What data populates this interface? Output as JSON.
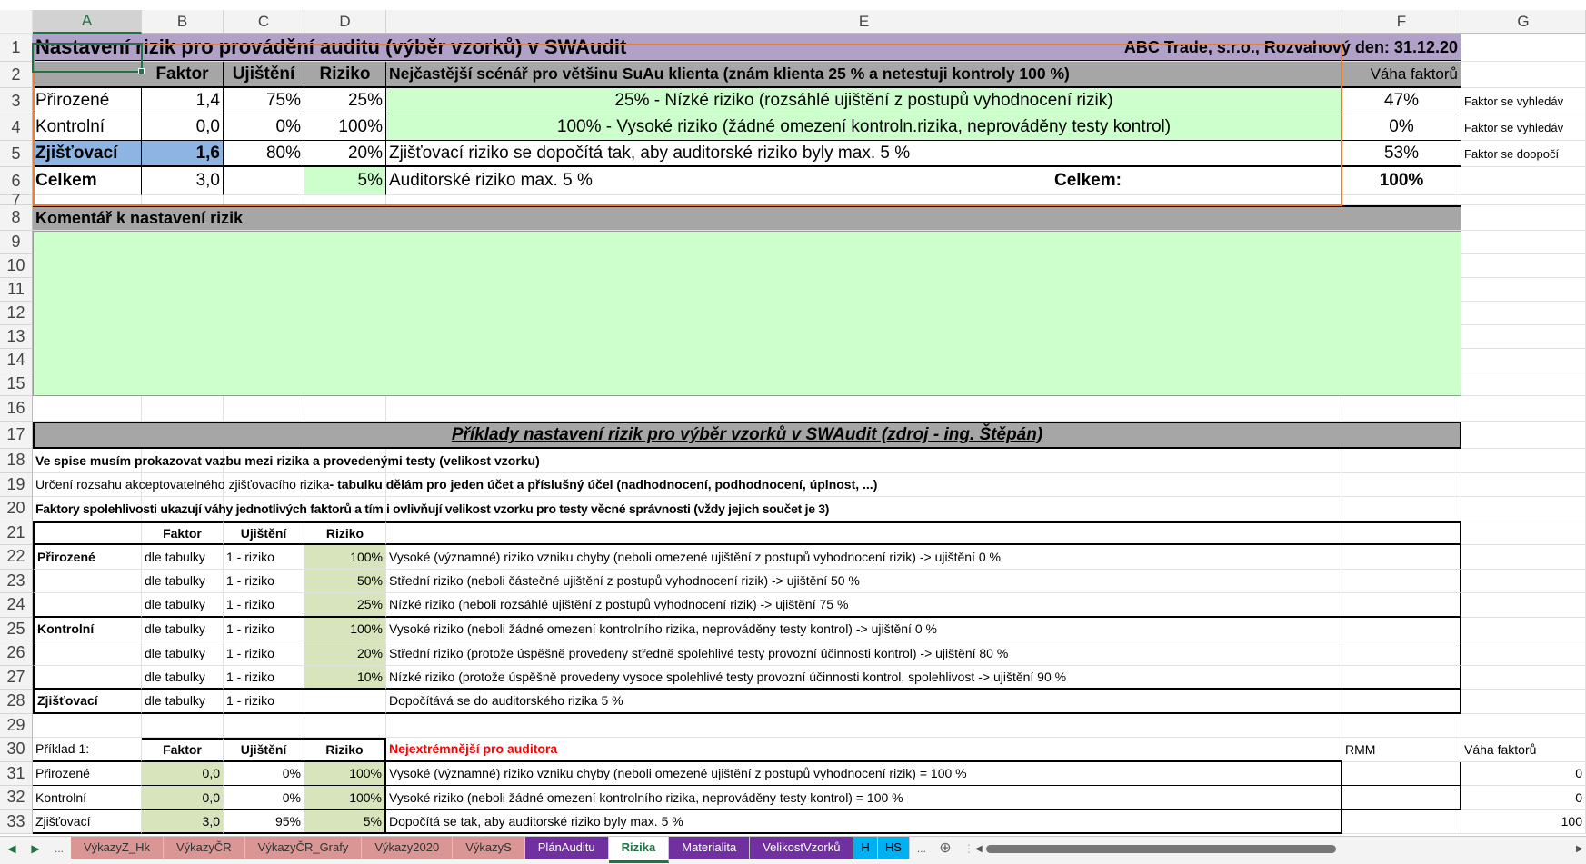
{
  "app": {
    "accent_color": "#217346",
    "selected_cell": "A1"
  },
  "columns": [
    "A",
    "B",
    "C",
    "D",
    "E",
    "F",
    "G"
  ],
  "row_numbers": [
    "1",
    "2",
    "3",
    "4",
    "5",
    "6",
    "7",
    "8",
    "9",
    "10",
    "11",
    "12",
    "13",
    "14",
    "15",
    "16",
    "17",
    "18",
    "19",
    "20",
    "21",
    "22",
    "23",
    "24",
    "25",
    "26",
    "27",
    "28",
    "29",
    "30",
    "31",
    "32",
    "33"
  ],
  "header": {
    "title": "Nastavení rizik pro provádění auditu (výběr vzorků) v SWAudit",
    "company": "ABC Trade, s.r.o., Rozvahový den: 31.12.20"
  },
  "risk_table": {
    "headers": {
      "faktor": "Faktor",
      "ujisteni": "Ujištění",
      "riziko": "Riziko",
      "scenario": "Nejčastější scénář pro většinu SuAu klienta (znám klienta 25 % a netestuji kontroly 100 %)",
      "vaha": "Váha faktorů"
    },
    "rows": [
      {
        "name": "Přirozené",
        "faktor": "1,4",
        "ujisteni": "75%",
        "riziko": "25%",
        "popis": "25% - Nízké riziko (rozsáhlé ujištění z postupů vyhodnocení rizik)",
        "vaha": "47%",
        "note": "Faktor se vyhledáv"
      },
      {
        "name": "Kontrolní",
        "faktor": "0,0",
        "ujisteni": "0%",
        "riziko": "100%",
        "popis": "100% - Vysoké riziko (žádné omezení kontroln.rizika, neprováděny testy kontrol)",
        "vaha": "0%",
        "note": "Faktor se vyhledáv"
      },
      {
        "name": "Zjišťovací",
        "faktor": "1,6",
        "ujisteni": "80%",
        "riziko": "20%",
        "popis": "Zjišťovací riziko se dopočítá tak, aby auditorské riziko byly max. 5 %",
        "vaha": "53%",
        "note": "Faktor se doopočí"
      }
    ],
    "total": {
      "name": "Celkem",
      "faktor": "3,0",
      "riziko": "5%",
      "popis": "Auditorské riziko max. 5 %",
      "label": "Celkem:",
      "vaha": "100%"
    }
  },
  "comment": {
    "header": "Komentář k nastavení rizik"
  },
  "examples": {
    "title": "Příklady nastavení rizik pro výběr vzorků v SWAudit (zdroj - ing. Štěpán)",
    "note1": "Ve spise musím prokazovat vazbu mezi rizika a provedenými testy (velikost vzorku)",
    "note2_normal": "Určení rozsahu akceptovatelného zjišťovacího rizika ",
    "note2_bold": "- tabulku dělám pro jeden účet a příslušný účel (nadhodnocení, podhodnocení, úplnost, ...)",
    "note3": "Faktory spolehlivosti ukazují váhy jednotlivých faktorů a tím i ovlivňují velikost vzorku pro testy věcné správnosti (vždy jejich součet je 3)",
    "headers": {
      "faktor": "Faktor",
      "ujisteni": "Ujištění",
      "riziko": "Riziko"
    },
    "rows": [
      {
        "name": "Přirozené",
        "faktor": "dle tabulky",
        "ujisteni": "1 - riziko",
        "riziko": "100%",
        "popis": "Vysoké (významné) riziko vzniku chyby (neboli omezené ujištění z postupů vyhodnocení rizik) -> ujištění 0 %"
      },
      {
        "name": "",
        "faktor": "dle tabulky",
        "ujisteni": "1 - riziko",
        "riziko": "50%",
        "popis": "Střední riziko (neboli částečné ujištění z postupů vyhodnocení rizik) -> ujištění 50 %"
      },
      {
        "name": "",
        "faktor": "dle tabulky",
        "ujisteni": "1 - riziko",
        "riziko": "25%",
        "popis": "Nízké riziko (neboli rozsáhlé ujištění z postupů vyhodnocení rizik)  -> ujištění 75 %"
      },
      {
        "name": "Kontrolní",
        "faktor": "dle tabulky",
        "ujisteni": "1 - riziko",
        "riziko": "100%",
        "popis": "Vysoké riziko (neboli žádné omezení kontrolního rizika, neprováděny testy kontrol)  -> ujištění 0 %"
      },
      {
        "name": "",
        "faktor": "dle tabulky",
        "ujisteni": "1 - riziko",
        "riziko": "20%",
        "popis": "Střední riziko (protože úspěšně provedeny středně spolehlivé testy provozní účinnosti kontrol)  -> ujištění 80 %"
      },
      {
        "name": "",
        "faktor": "dle tabulky",
        "ujisteni": "1 - riziko",
        "riziko": "10%",
        "popis": "Nízké riziko (protože úspěšně provedeny vysoce spolehlivé testy provozní účinnosti kontrol, spolehlivost  -> ujištění 90 %"
      },
      {
        "name": "Zjišťovací",
        "faktor": "dle tabulky",
        "ujisteni": "1 - riziko",
        "riziko": "",
        "popis": "Dopočítává se do auditorského rizika 5 %"
      }
    ]
  },
  "example1": {
    "label": "Příklad 1:",
    "headers": {
      "faktor": "Faktor",
      "ujisteni": "Ujištění",
      "riziko": "Riziko",
      "title": "Nejextrémnější pro auditora",
      "rmm": "RMM",
      "vaha": "Váha faktorů"
    },
    "rows": [
      {
        "name": "Přirozené",
        "faktor": "0,0",
        "ujisteni": "0%",
        "riziko": "100%",
        "popis": "Vysoké (významné) riziko vzniku chyby (neboli omezené ujištění z postupů vyhodnocení rizik) = 100 %",
        "vaha": "0"
      },
      {
        "name": "Kontrolní",
        "faktor": "0,0",
        "ujisteni": "0%",
        "riziko": "100%",
        "popis": "Vysoké riziko (neboli žádné omezení kontrolního rizika, neprováděny testy kontrol) = 100 %",
        "vaha": "0"
      },
      {
        "name": "Zjišťovací",
        "faktor": "3,0",
        "ujisteni": "95%",
        "riziko": "5%",
        "popis": "Dopočítá se tak, aby auditorské riziko byly max. 5 %",
        "vaha": "100"
      }
    ]
  },
  "sheet_tabs": {
    "more": "...",
    "tabs": [
      {
        "label": "VýkazyZ_Hk",
        "color": "#da9694"
      },
      {
        "label": "VýkazyČR",
        "color": "#da9694"
      },
      {
        "label": "VýkazyČR_Grafy",
        "color": "#da9694"
      },
      {
        "label": "Výkazy2020",
        "color": "#da9694"
      },
      {
        "label": "VýkazyS",
        "color": "#da9694"
      },
      {
        "label": "PlánAuditu",
        "color": "#7030a0"
      },
      {
        "label": "Rizika",
        "color": "#ffffff",
        "active": true
      },
      {
        "label": "Materialita",
        "color": "#7030a0"
      },
      {
        "label": "VelikostVzorků",
        "color": "#7030a0"
      },
      {
        "label": "H",
        "color": "#00b0f0"
      },
      {
        "label": "HS",
        "color": "#00b0f0"
      }
    ],
    "more_right": "...",
    "add_icon": "plus-circle-icon"
  }
}
